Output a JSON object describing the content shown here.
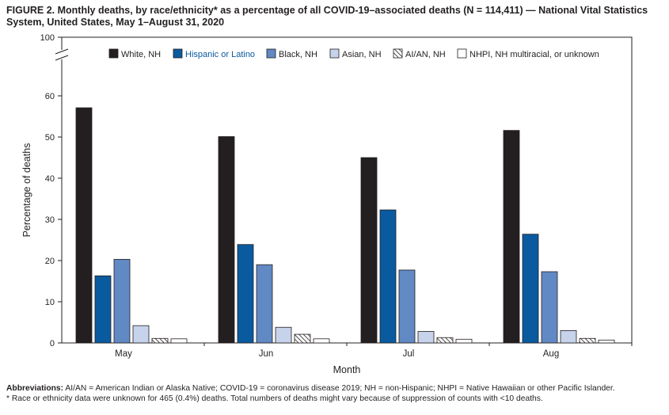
{
  "figure": {
    "title": "FIGURE 2. Monthly deaths, by race/ethnicity* as a percentage of all COVID-19–associated deaths (N = 114,411) — National Vital Statistics System, United States, May 1–August 31, 2020"
  },
  "footer": {
    "abbrev_label": "Abbreviations:",
    "abbrev_text": "AI/AN = American Indian or Alaska Native; COVID-19 = coronavirus disease 2019; NH = non-Hispanic; NHPI = Native Hawaiian or other Pacific Islander.",
    "note": "* Race or ethnicity data were unknown for 465 (0.4%) deaths. Total numbers of deaths might vary because of suppression of counts with <10 deaths."
  },
  "chart_data": {
    "type": "bar",
    "xlabel": "Month",
    "ylabel": "Percentage of deaths",
    "ylim": [
      0,
      100
    ],
    "axis_break": "between 60 and 100",
    "yticks": [
      0,
      10,
      20,
      30,
      40,
      50,
      60,
      100
    ],
    "categories": [
      "May",
      "Jun",
      "Jul",
      "Aug"
    ],
    "legend_position": "top",
    "series": [
      {
        "name": "White, NH",
        "color": "#231f20",
        "pattern": "solid",
        "values": [
          57.1,
          50.1,
          45.0,
          51.6
        ]
      },
      {
        "name": "Hispanic or Latino",
        "color": "#0a5aa0",
        "pattern": "solid",
        "values": [
          16.3,
          23.9,
          32.3,
          26.4
        ]
      },
      {
        "name": "Black, NH",
        "color": "#6189c4",
        "pattern": "solid",
        "values": [
          20.3,
          19.0,
          17.7,
          17.3
        ]
      },
      {
        "name": "Asian, NH",
        "color": "#c6d3ea",
        "pattern": "solid",
        "values": [
          4.2,
          3.8,
          2.8,
          3.0
        ]
      },
      {
        "name": "AI/AN, NH",
        "color": "#ffffff",
        "pattern": "hatch",
        "values": [
          1.1,
          2.1,
          1.3,
          1.1
        ]
      },
      {
        "name": "NHPI, NH multiracial, or unknown",
        "color": "#ffffff",
        "pattern": "solid",
        "values": [
          1.0,
          1.0,
          0.9,
          0.7
        ]
      }
    ]
  }
}
